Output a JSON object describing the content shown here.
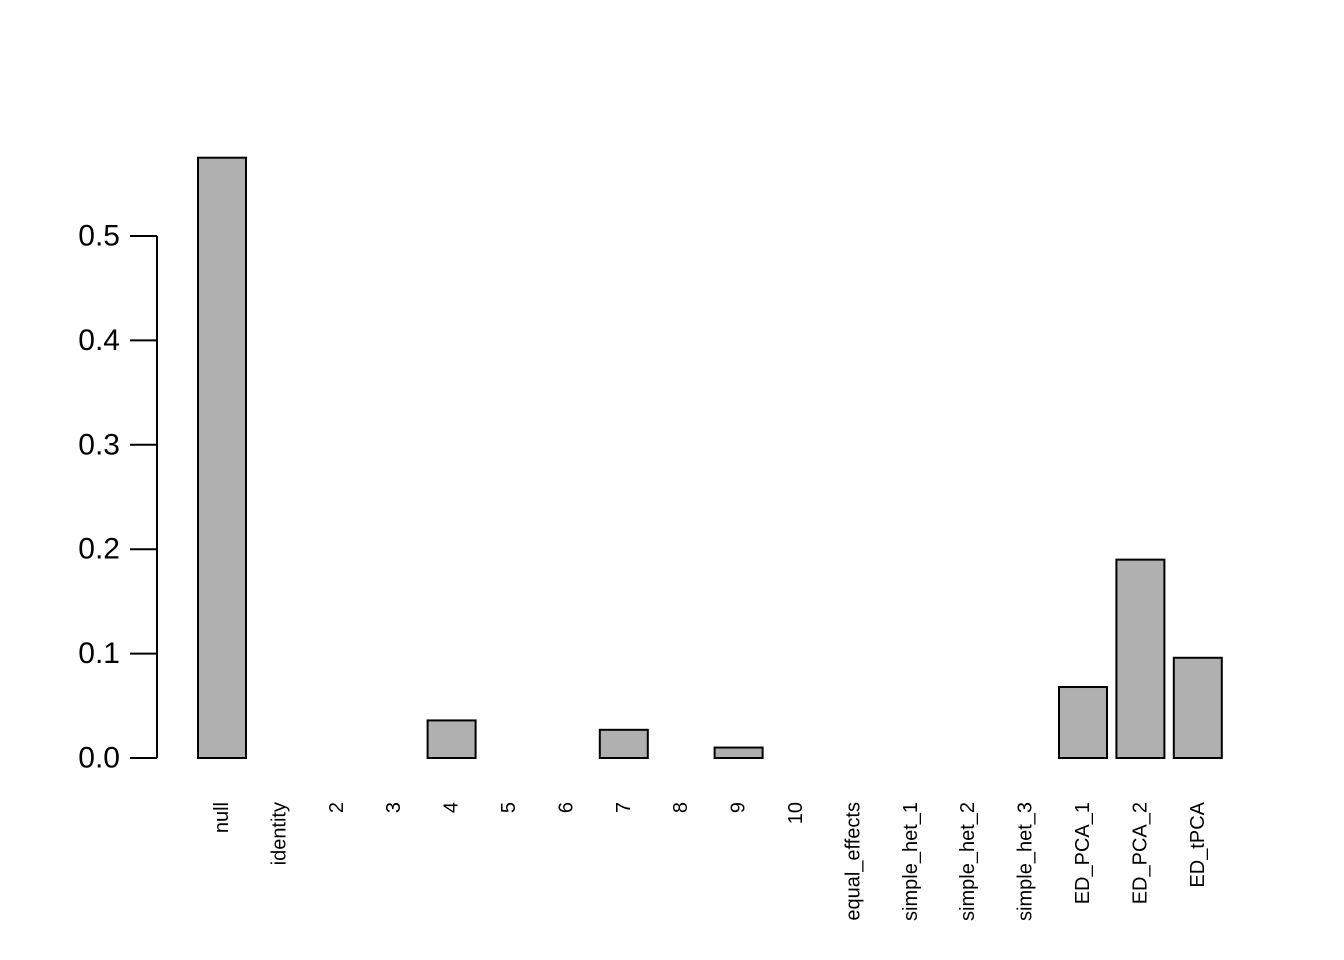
{
  "chart_data": {
    "type": "bar",
    "title": "",
    "xlabel": "",
    "ylabel": "",
    "ylim": [
      0,
      0.6
    ],
    "yticks": [
      0.0,
      0.1,
      0.2,
      0.3,
      0.4,
      0.5
    ],
    "ytick_labels": [
      "0.0",
      "0.1",
      "0.2",
      "0.3",
      "0.4",
      "0.5"
    ],
    "grid": false,
    "legend": "none",
    "bar_color": "#b0b0b0",
    "bar_border_color": "#000000",
    "categories": [
      "null",
      "identity",
      "2",
      "3",
      "4",
      "5",
      "6",
      "7",
      "8",
      "9",
      "10",
      "equal_effects",
      "simple_het_1",
      "simple_het_2",
      "simple_het_3",
      "ED_PCA_1",
      "ED_PCA_2",
      "ED_tPCA"
    ],
    "values": [
      0.575,
      0.0,
      0.0,
      0.0,
      0.036,
      0.0,
      0.0,
      0.027,
      0.0,
      0.01,
      0.0,
      0.0,
      0.0,
      0.0,
      0.0,
      0.068,
      0.19,
      0.096
    ]
  }
}
